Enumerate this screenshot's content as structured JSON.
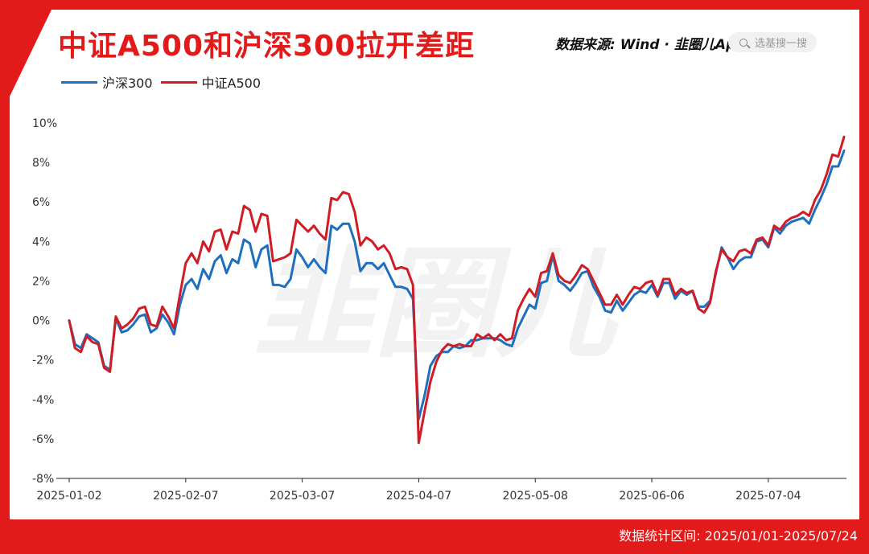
{
  "title": "中证A500和沪深300拉开差距",
  "source": "数据来源: Wind · 韭圈儿App",
  "search": {
    "placeholder": "选基搜一搜"
  },
  "watermark": "韭圈儿",
  "footer": "数据统计区间: 2025/01/01-2025/07/24",
  "colors": {
    "hs300": "#1f6fbf",
    "a500": "#d01c24",
    "accent": "#e21a1a"
  },
  "chart_data": {
    "type": "line",
    "title": "中证A500和沪深300拉开差距",
    "xlabel": "",
    "ylabel": "",
    "ylim": [
      -8,
      10
    ],
    "yticks": [
      "-8%",
      "-6%",
      "-4%",
      "-2%",
      "0%",
      "2%",
      "4%",
      "6%",
      "8%",
      "10%"
    ],
    "xtick_labels": [
      "2025-01-02",
      "2025-02-07",
      "2025-03-07",
      "2025-04-07",
      "2025-05-08",
      "2025-06-06",
      "2025-07-04"
    ],
    "xtick_index": [
      0,
      20,
      40,
      60,
      80,
      100,
      120
    ],
    "grid": false,
    "legend": "top-left",
    "series": [
      {
        "name": "沪深300",
        "values": [
          0,
          -1.2,
          -1.4,
          -0.7,
          -0.9,
          -1.1,
          -2.3,
          -2.5,
          0.1,
          -0.6,
          -0.5,
          -0.2,
          0.2,
          0.3,
          -0.6,
          -0.4,
          0.3,
          -0.1,
          -0.7,
          0.8,
          1.8,
          2.1,
          1.6,
          2.6,
          2.1,
          3.0,
          3.3,
          2.4,
          3.1,
          2.9,
          4.1,
          3.9,
          2.7,
          3.6,
          3.8,
          1.8,
          1.8,
          1.7,
          2.1,
          3.6,
          3.2,
          2.7,
          3.1,
          2.7,
          2.4,
          4.8,
          4.6,
          4.9,
          4.9,
          4.0,
          2.5,
          2.9,
          2.9,
          2.6,
          2.9,
          2.3,
          1.7,
          1.7,
          1.6,
          1.1,
          -5.0,
          -3.8,
          -2.3,
          -1.8,
          -1.6,
          -1.6,
          -1.3,
          -1.4,
          -1.3,
          -1.0,
          -1.0,
          -0.9,
          -0.9,
          -0.9,
          -1.0,
          -1.2,
          -1.3,
          -0.4,
          0.2,
          0.8,
          0.6,
          1.9,
          2.0,
          3.3,
          2.0,
          1.8,
          1.5,
          1.9,
          2.4,
          2.5,
          1.7,
          1.2,
          0.5,
          0.4,
          1.0,
          0.5,
          0.9,
          1.3,
          1.5,
          1.4,
          1.8,
          1.2,
          1.9,
          1.9,
          1.1,
          1.5,
          1.3,
          1.5,
          0.7,
          0.7,
          1.0,
          2.4,
          3.7,
          3.2,
          2.6,
          3.0,
          3.2,
          3.2,
          4.0,
          4.1,
          3.7,
          4.7,
          4.4,
          4.8,
          5.0,
          5.1,
          5.2,
          4.9,
          5.6,
          6.2,
          6.9,
          7.8,
          7.8,
          8.6
        ]
      },
      {
        "name": "中证A500",
        "values": [
          0,
          -1.4,
          -1.6,
          -0.8,
          -1.1,
          -1.2,
          -2.4,
          -2.6,
          0.2,
          -0.4,
          -0.2,
          0.1,
          0.6,
          0.7,
          -0.2,
          -0.3,
          0.7,
          0.2,
          -0.4,
          1.3,
          2.9,
          3.4,
          2.9,
          4.0,
          3.5,
          4.5,
          4.6,
          3.6,
          4.5,
          4.4,
          5.8,
          5.6,
          4.5,
          5.4,
          5.3,
          3.0,
          3.1,
          3.2,
          3.4,
          5.1,
          4.8,
          4.5,
          4.8,
          4.4,
          4.1,
          6.2,
          6.1,
          6.5,
          6.4,
          5.5,
          3.8,
          4.2,
          4.0,
          3.6,
          3.8,
          3.4,
          2.6,
          2.7,
          2.6,
          1.8,
          -6.2,
          -4.6,
          -3.1,
          -2.1,
          -1.5,
          -1.2,
          -1.3,
          -1.2,
          -1.3,
          -1.3,
          -0.7,
          -0.9,
          -0.7,
          -1.0,
          -0.7,
          -1.0,
          -0.9,
          0.5,
          1.1,
          1.6,
          1.2,
          2.4,
          2.5,
          3.4,
          2.3,
          2.0,
          1.9,
          2.3,
          2.8,
          2.6,
          2.0,
          1.4,
          0.8,
          0.8,
          1.3,
          0.8,
          1.3,
          1.7,
          1.6,
          1.9,
          2.0,
          1.3,
          2.1,
          2.1,
          1.3,
          1.6,
          1.4,
          1.5,
          0.6,
          0.4,
          0.9,
          2.5,
          3.6,
          3.2,
          3.0,
          3.5,
          3.6,
          3.4,
          4.1,
          4.2,
          3.8,
          4.8,
          4.6,
          5.0,
          5.2,
          5.3,
          5.5,
          5.3,
          6.1,
          6.6,
          7.4,
          8.4,
          8.3,
          9.3
        ]
      }
    ]
  }
}
